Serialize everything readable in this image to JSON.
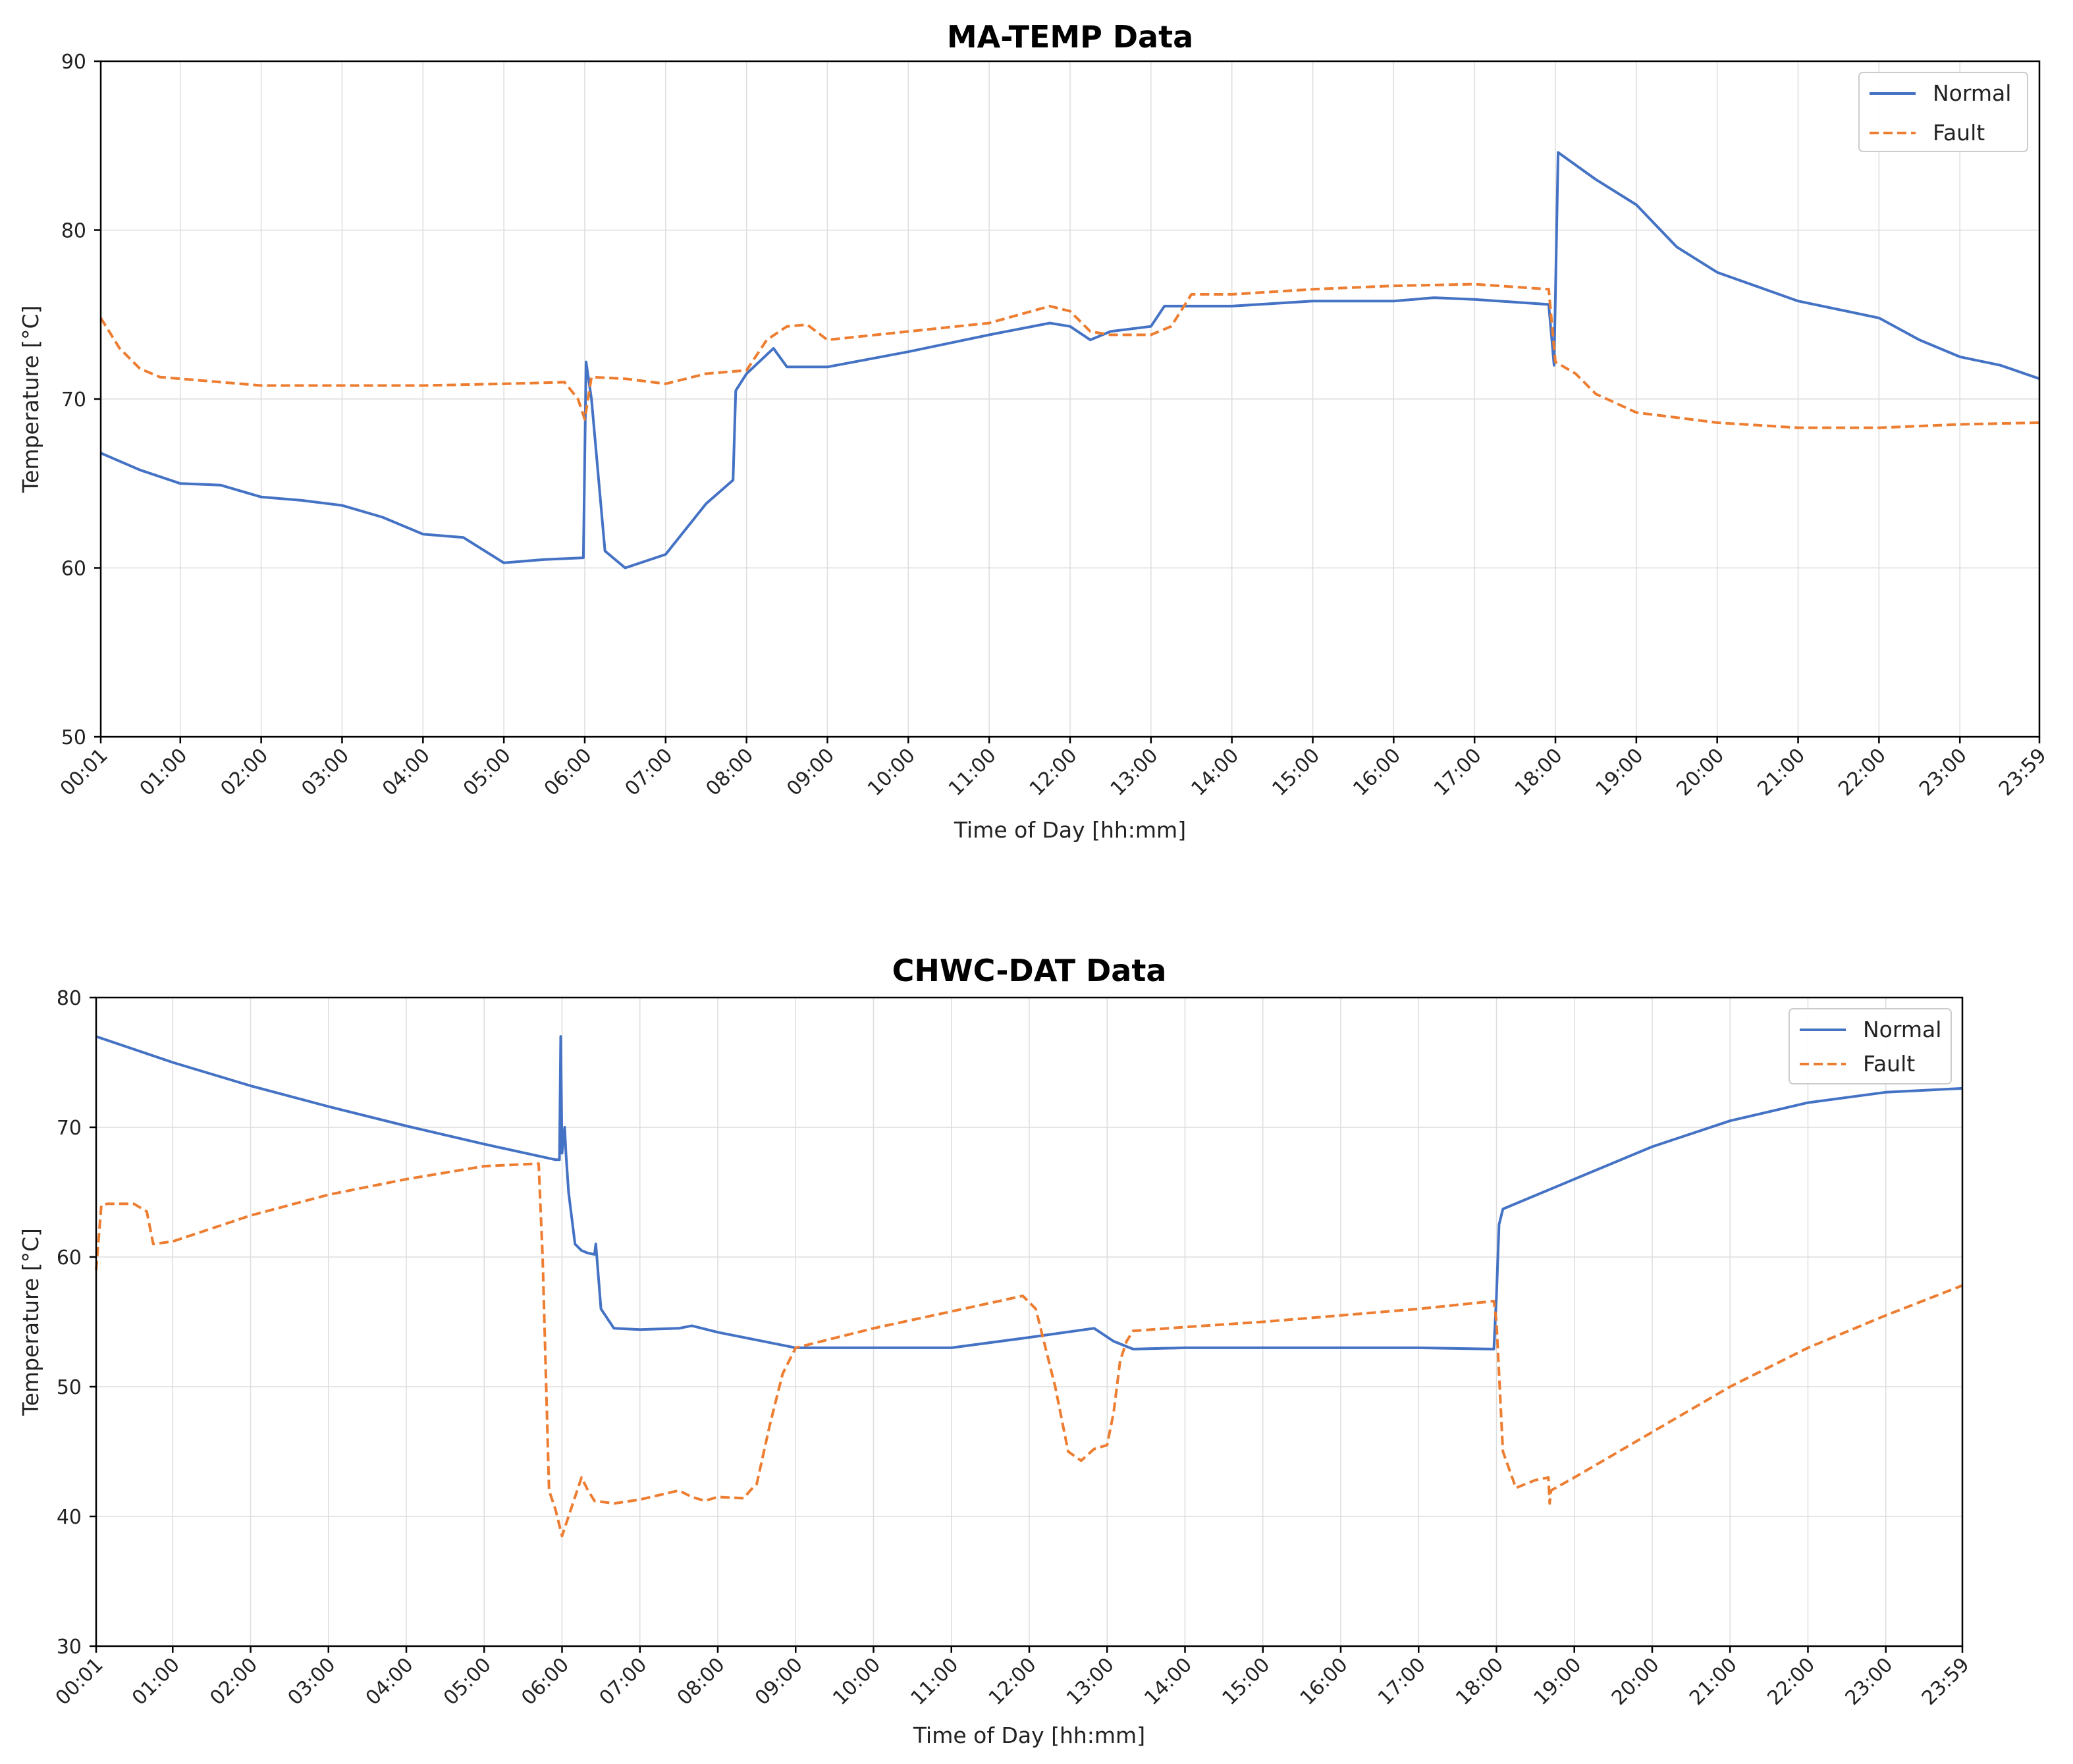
{
  "chart_data": [
    {
      "type": "line",
      "title": "MA-TEMP Data",
      "xlabel": "Time of Day [hh:mm]",
      "ylabel": "Temperature [°C]",
      "ylim": [
        50,
        90
      ],
      "yticks": [
        "50",
        "60",
        "70",
        "80",
        "90"
      ],
      "xlim": [
        "00:01",
        "23:59"
      ],
      "xticks": [
        "00:01",
        "01:00",
        "02:00",
        "03:00",
        "04:00",
        "05:00",
        "06:00",
        "07:00",
        "08:00",
        "09:00",
        "10:00",
        "11:00",
        "12:00",
        "13:00",
        "14:00",
        "15:00",
        "16:00",
        "17:00",
        "18:00",
        "19:00",
        "20:00",
        "21:00",
        "22:00",
        "23:00",
        "23:59"
      ],
      "grid": true,
      "legend": "top-right",
      "series": [
        {
          "name": "Normal",
          "color": "#4472c4",
          "style": "solid",
          "x": [
            "00:01",
            "00:30",
            "01:00",
            "01:30",
            "02:00",
            "02:30",
            "03:00",
            "03:30",
            "04:00",
            "04:30",
            "05:00",
            "05:30",
            "05:59",
            "06:01",
            "06:05",
            "06:15",
            "06:30",
            "07:00",
            "07:30",
            "07:50",
            "07:52",
            "08:00",
            "08:20",
            "08:30",
            "09:00",
            "10:00",
            "11:00",
            "11:45",
            "12:00",
            "12:15",
            "12:30",
            "13:00",
            "13:10",
            "14:00",
            "15:00",
            "16:00",
            "16:30",
            "17:00",
            "17:55",
            "17:59",
            "18:02",
            "18:30",
            "19:00",
            "19:30",
            "20:00",
            "21:00",
            "22:00",
            "22:30",
            "23:00",
            "23:30",
            "23:59"
          ],
          "y": [
            66.8,
            65.8,
            65.0,
            64.9,
            64.2,
            64.0,
            63.7,
            63.0,
            62.0,
            61.8,
            60.3,
            60.5,
            60.6,
            72.2,
            70.0,
            61.0,
            60.0,
            60.8,
            63.8,
            65.2,
            70.5,
            71.5,
            73.0,
            71.9,
            71.9,
            72.8,
            73.8,
            74.5,
            74.3,
            73.5,
            74.0,
            74.3,
            75.5,
            75.5,
            75.8,
            75.8,
            76.0,
            75.9,
            75.6,
            72.0,
            84.6,
            83.0,
            81.5,
            79.0,
            77.5,
            75.8,
            74.8,
            73.5,
            72.5,
            72.0,
            71.2
          ]
        },
        {
          "name": "Fault",
          "color": "#ed7d31",
          "style": "dashed",
          "x": [
            "00:01",
            "00:15",
            "00:30",
            "00:45",
            "01:00",
            "02:00",
            "03:00",
            "04:00",
            "05:00",
            "05:45",
            "05:55",
            "06:00",
            "06:05",
            "06:30",
            "07:00",
            "07:30",
            "08:00",
            "08:15",
            "08:30",
            "08:45",
            "09:00",
            "10:00",
            "11:00",
            "11:45",
            "12:00",
            "12:15",
            "12:30",
            "13:00",
            "13:15",
            "13:30",
            "14:00",
            "15:00",
            "16:00",
            "17:00",
            "17:55",
            "18:00",
            "18:15",
            "18:30",
            "19:00",
            "19:30",
            "20:00",
            "21:00",
            "22:00",
            "23:00",
            "23:59"
          ],
          "y": [
            74.8,
            73.0,
            71.8,
            71.3,
            71.2,
            70.8,
            70.8,
            70.8,
            70.9,
            71.0,
            70.0,
            68.8,
            71.3,
            71.2,
            70.9,
            71.5,
            71.7,
            73.5,
            74.3,
            74.4,
            73.5,
            74.0,
            74.5,
            75.5,
            75.2,
            74.0,
            73.8,
            73.8,
            74.3,
            76.2,
            76.2,
            76.5,
            76.7,
            76.8,
            76.5,
            72.2,
            71.5,
            70.3,
            69.2,
            68.9,
            68.6,
            68.3,
            68.3,
            68.5,
            68.6
          ]
        }
      ]
    },
    {
      "type": "line",
      "title": "CHWC-DAT Data",
      "xlabel": "Time of Day [hh:mm]",
      "ylabel": "Temperature [°C]",
      "ylim": [
        30,
        80
      ],
      "yticks": [
        "30",
        "40",
        "50",
        "60",
        "70",
        "80"
      ],
      "xlim": [
        "00:01",
        "23:59"
      ],
      "xticks": [
        "00:01",
        "01:00",
        "02:00",
        "03:00",
        "04:00",
        "05:00",
        "06:00",
        "07:00",
        "08:00",
        "09:00",
        "10:00",
        "11:00",
        "12:00",
        "13:00",
        "14:00",
        "15:00",
        "16:00",
        "17:00",
        "18:00",
        "19:00",
        "20:00",
        "21:00",
        "22:00",
        "23:00",
        "23:59"
      ],
      "grid": true,
      "legend": "top-right",
      "series": [
        {
          "name": "Normal",
          "color": "#4472c4",
          "style": "solid",
          "x": [
            "00:01",
            "01:00",
            "02:00",
            "03:00",
            "04:00",
            "05:00",
            "05:55",
            "05:58",
            "05:59",
            "06:00",
            "06:02",
            "06:03",
            "06:05",
            "06:10",
            "06:15",
            "06:20",
            "06:25",
            "06:26",
            "06:30",
            "06:40",
            "07:00",
            "07:30",
            "07:40",
            "08:00",
            "08:30",
            "09:00",
            "10:00",
            "11:00",
            "12:00",
            "12:50",
            "13:05",
            "13:20",
            "14:00",
            "15:00",
            "16:00",
            "17:00",
            "17:58",
            "18:00",
            "18:02",
            "18:05",
            "19:00",
            "20:00",
            "21:00",
            "22:00",
            "23:00",
            "23:59"
          ],
          "y": [
            77.0,
            75.0,
            73.2,
            71.6,
            70.1,
            68.7,
            67.5,
            67.5,
            77.0,
            68.0,
            70.0,
            68.0,
            65.0,
            61.0,
            60.5,
            60.3,
            60.2,
            61.0,
            56.0,
            54.5,
            54.4,
            54.5,
            54.7,
            54.2,
            53.6,
            53.0,
            53.0,
            53.0,
            53.8,
            54.5,
            53.5,
            52.9,
            53.0,
            53.0,
            53.0,
            53.0,
            52.9,
            57.0,
            62.5,
            63.7,
            66.0,
            68.5,
            70.5,
            71.9,
            72.7,
            73.0
          ]
        },
        {
          "name": "Fault",
          "color": "#ed7d31",
          "style": "dashed",
          "x": [
            "00:01",
            "00:05",
            "00:10",
            "00:30",
            "00:40",
            "00:45",
            "01:00",
            "02:00",
            "03:00",
            "04:00",
            "05:00",
            "05:42",
            "05:45",
            "05:50",
            "05:55",
            "06:00",
            "06:05",
            "06:15",
            "06:20",
            "06:25",
            "06:40",
            "07:00",
            "07:30",
            "07:40",
            "07:50",
            "08:00",
            "08:20",
            "08:25",
            "08:30",
            "08:40",
            "08:50",
            "09:00",
            "10:00",
            "11:00",
            "11:55",
            "12:05",
            "12:20",
            "12:30",
            "12:40",
            "12:50",
            "13:00",
            "13:05",
            "13:10",
            "13:15",
            "13:20",
            "14:00",
            "15:00",
            "16:00",
            "17:00",
            "17:58",
            "18:00",
            "18:05",
            "18:15",
            "18:30",
            "18:40",
            "18:41",
            "18:42",
            "19:00",
            "20:00",
            "21:00",
            "22:00",
            "23:00",
            "23:59"
          ],
          "y": [
            59.0,
            64.0,
            64.1,
            64.1,
            63.5,
            61.0,
            61.2,
            63.2,
            64.8,
            66.0,
            67.0,
            67.2,
            60.0,
            42.0,
            40.5,
            38.5,
            40.0,
            43.0,
            42.0,
            41.2,
            41.0,
            41.3,
            42.0,
            41.5,
            41.2,
            41.5,
            41.4,
            42.0,
            42.5,
            47.0,
            51.0,
            53.0,
            54.5,
            55.8,
            57.0,
            56.0,
            50.0,
            45.0,
            44.3,
            45.2,
            45.5,
            48.0,
            52.0,
            53.5,
            54.3,
            54.6,
            55.0,
            55.5,
            56.0,
            56.6,
            55.0,
            45.0,
            42.2,
            42.8,
            43.0,
            41.0,
            42.0,
            43.0,
            46.5,
            50.0,
            53.0,
            55.5,
            57.8
          ]
        }
      ]
    }
  ]
}
